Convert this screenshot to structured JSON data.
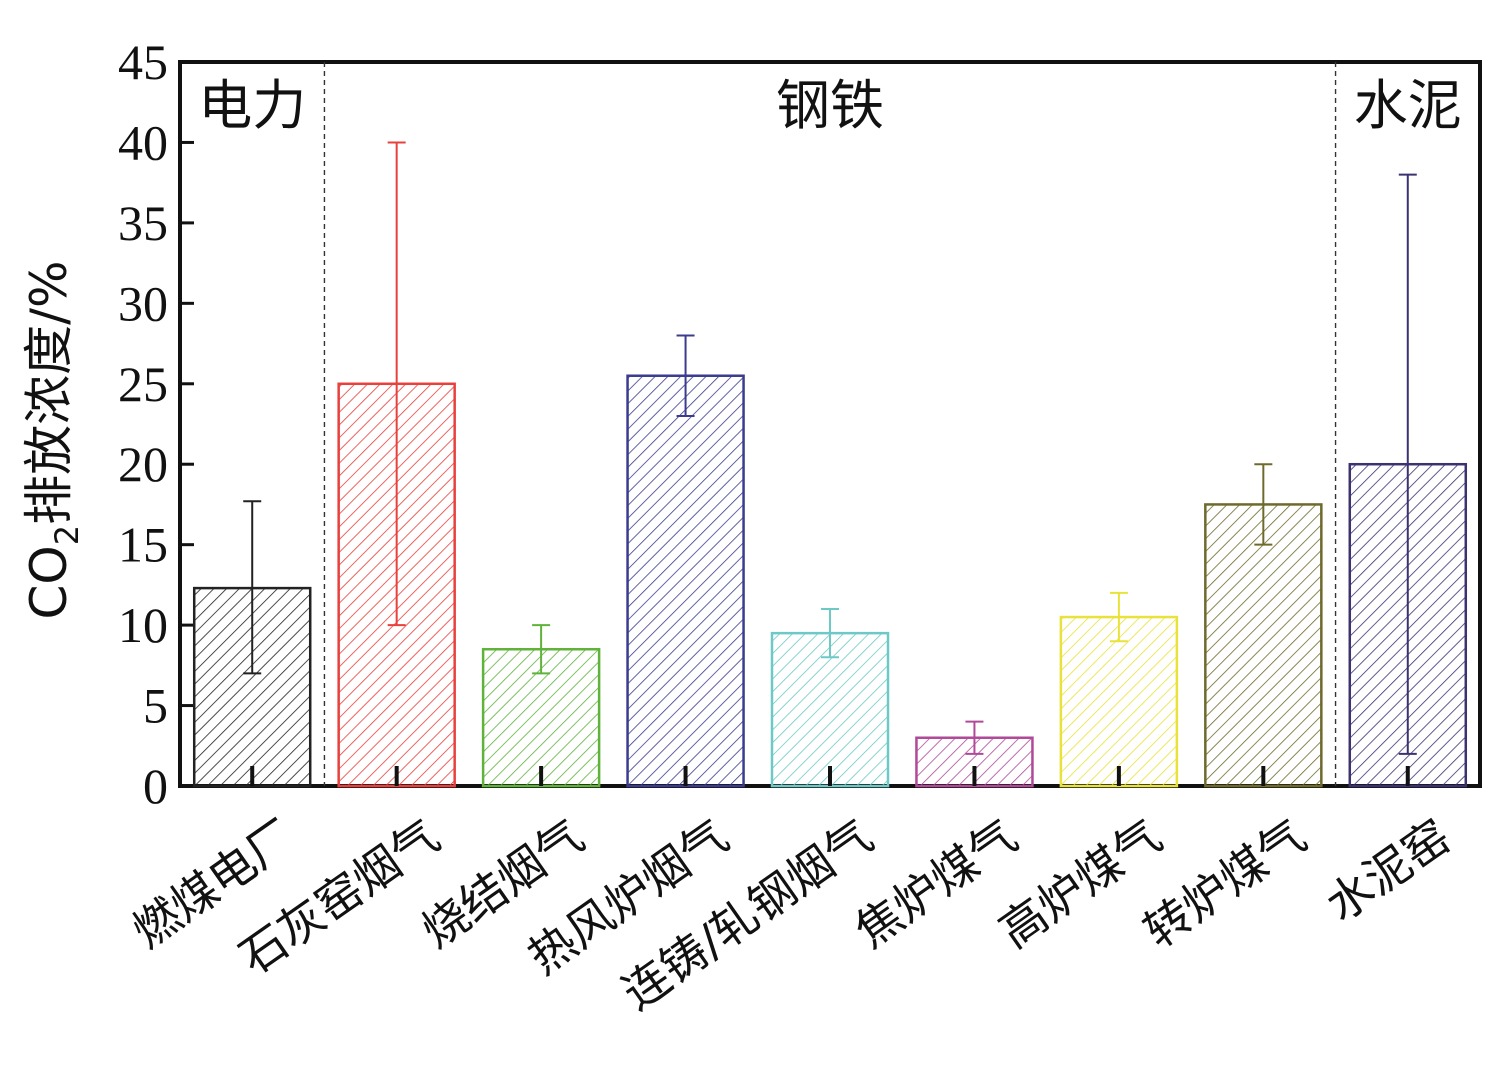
{
  "chart_data": {
    "type": "bar",
    "ylabel_main": "CO",
    "ylabel_sub": "2",
    "ylabel_rest": "排放浓度/%",
    "ylim": [
      0,
      45
    ],
    "yticks": [
      "0",
      "5",
      "10",
      "15",
      "20",
      "25",
      "30",
      "35",
      "40",
      "45"
    ],
    "grid": false,
    "categories": [
      "燃煤电厂",
      "石灰窑烟气",
      "烧结烟气",
      "热风炉烟气",
      "连铸/轧钢烟气",
      "焦炉煤气",
      "高炉煤气",
      "转炉煤气",
      "水泥窑"
    ],
    "values": [
      12.3,
      25.0,
      8.5,
      25.5,
      9.5,
      3.0,
      10.5,
      17.5,
      20.0
    ],
    "error_low": [
      7.0,
      10.0,
      7.0,
      23.0,
      8.0,
      2.0,
      9.0,
      15.0,
      2.0
    ],
    "error_high": [
      17.7,
      40.0,
      10.0,
      28.0,
      11.0,
      4.0,
      12.0,
      20.0,
      38.0
    ],
    "colors": [
      "#222222",
      "#e8403c",
      "#5fb23a",
      "#3b3b8f",
      "#6cc9c6",
      "#b04a98",
      "#e8e23a",
      "#6e6a2c",
      "#3b3370"
    ],
    "groups": [
      {
        "label": "电力",
        "start": 0,
        "end": 0
      },
      {
        "label": "钢铁",
        "start": 1,
        "end": 7
      },
      {
        "label": "水泥",
        "start": 8,
        "end": 8
      }
    ]
  }
}
